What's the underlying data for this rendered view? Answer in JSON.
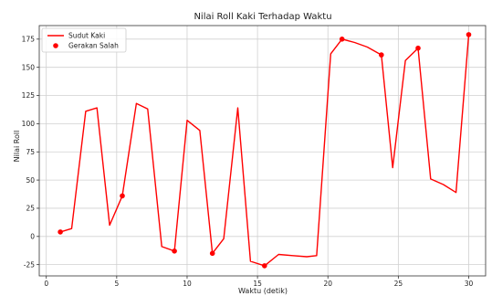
{
  "chart_data": {
    "type": "line",
    "title": "Nilai Roll Kaki Terhadap Waktu",
    "xlabel": "Waktu (detik)",
    "ylabel": "Nilai Roll",
    "xlim": [
      -0.5,
      31.2
    ],
    "ylim": [
      -35,
      187
    ],
    "xticks": [
      0,
      5,
      10,
      15,
      20,
      25,
      30
    ],
    "yticks": [
      -25,
      0,
      25,
      50,
      75,
      100,
      125,
      150,
      175
    ],
    "grid": true,
    "legend_position": "top-left",
    "series": [
      {
        "name": "Sudut Kaki",
        "kind": "line",
        "color": "#ff0000",
        "x": [
          1,
          1.8,
          2.8,
          3.6,
          4.5,
          5.4,
          6.4,
          7.2,
          8.2,
          9.1,
          10,
          10.9,
          11.8,
          12.6,
          13.6,
          14.5,
          15.5,
          16.5,
          17.5,
          18.5,
          19.2,
          20.2,
          21,
          21.9,
          22.8,
          23.8,
          24.6,
          25.5,
          26.4,
          27.3,
          28.2,
          29.1,
          30
        ],
        "y": [
          4,
          7,
          111,
          114,
          10,
          36,
          118,
          113,
          -9,
          -13,
          103,
          94,
          -15,
          -2,
          114,
          -22,
          -26,
          -16,
          -17,
          -18,
          -17,
          162,
          175,
          172,
          168,
          161,
          61,
          156,
          167,
          51,
          46,
          39,
          179
        ]
      },
      {
        "name": "Gerakan Salah",
        "kind": "scatter",
        "color": "#ff0000",
        "x": [
          1,
          5.4,
          9.1,
          11.8,
          15.5,
          21,
          23.8,
          26.4,
          30
        ],
        "y": [
          4,
          36,
          -13,
          -15,
          -26,
          175,
          161,
          167,
          179
        ]
      }
    ]
  }
}
